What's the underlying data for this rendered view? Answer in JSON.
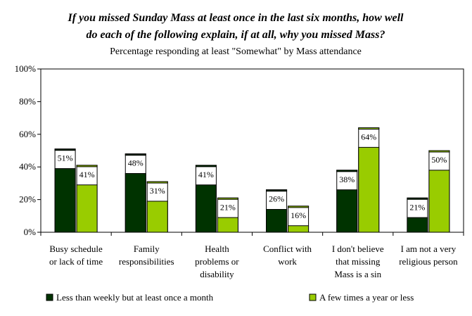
{
  "chart_data": {
    "type": "bar",
    "title_line1": "If you missed Sunday Mass at least once in the last six months, how well",
    "title_line2": "do each of the following explain, if at all, why you missed Mass?",
    "subtitle": "Percentage responding at least \"Somewhat\" by Mass attendance",
    "ylim": [
      0,
      100
    ],
    "yticks": [
      "0%",
      "20%",
      "40%",
      "60%",
      "80%",
      "100%"
    ],
    "grid": false,
    "categories": [
      [
        "Busy schedule",
        "or lack of time"
      ],
      [
        "Family",
        "responsibilities"
      ],
      [
        "Health",
        "problems or",
        "disability"
      ],
      [
        "Conflict with",
        "work"
      ],
      [
        "I don't believe",
        "that missing",
        "Mass is a sin"
      ],
      [
        "I am not a very",
        "religious person"
      ]
    ],
    "series": [
      {
        "name": "Less than weekly but at least once a month",
        "color": "#003300",
        "values": [
          51,
          48,
          41,
          26,
          38,
          21
        ],
        "solid_values": [
          39,
          36,
          29,
          14,
          26,
          9
        ],
        "labels": [
          "51%",
          "48%",
          "41%",
          "26%",
          "38%",
          "21%"
        ]
      },
      {
        "name": "A few times a year or less",
        "color": "#99cc00",
        "values": [
          41,
          31,
          21,
          16,
          64,
          50
        ],
        "solid_values": [
          29,
          19,
          9,
          4,
          52,
          38
        ],
        "labels": [
          "41%",
          "31%",
          "21%",
          "16%",
          "64%",
          "50%"
        ]
      }
    ],
    "legend_position": "bottom"
  }
}
